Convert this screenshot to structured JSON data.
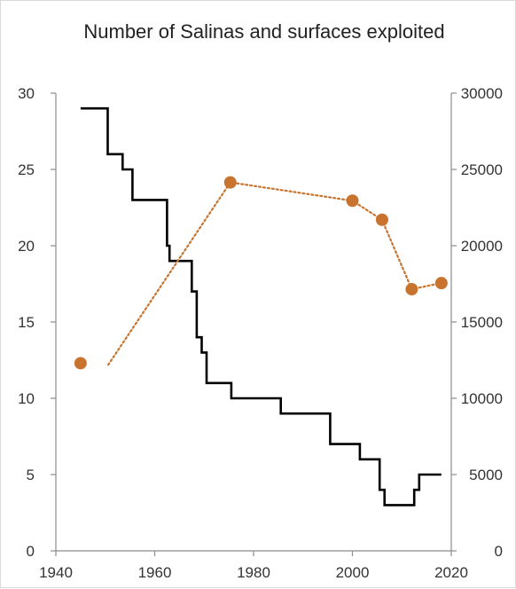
{
  "chart_data": {
    "type": "line",
    "title": "Number of Salinas and surfaces exploited",
    "xlabel": "",
    "ylabel": "",
    "xlim": [
      1940,
      2020
    ],
    "xticks": [
      1940,
      1960,
      1980,
      2000,
      2020
    ],
    "y_left": {
      "lim": [
        0,
        30
      ],
      "ticks": [
        0,
        5,
        10,
        15,
        20,
        25,
        30
      ]
    },
    "y_right": {
      "lim": [
        0,
        30000
      ],
      "ticks": [
        0,
        5000,
        10000,
        15000,
        20000,
        25000,
        30000
      ]
    },
    "grid": false,
    "legend": "none",
    "series": [
      {
        "axis": "left",
        "style": "step",
        "color": "#000000",
        "points": [
          [
            1945,
            29
          ],
          [
            1950.5,
            29
          ],
          [
            1950.5,
            26
          ],
          [
            1953.5,
            26
          ],
          [
            1953.5,
            25
          ],
          [
            1955.5,
            25
          ],
          [
            1955.5,
            23
          ],
          [
            1962.5,
            23
          ],
          [
            1962.5,
            20
          ],
          [
            1963,
            20
          ],
          [
            1963,
            19
          ],
          [
            1967.5,
            19
          ],
          [
            1967.5,
            17
          ],
          [
            1968.5,
            17
          ],
          [
            1968.5,
            14
          ],
          [
            1969.5,
            14
          ],
          [
            1969.5,
            13
          ],
          [
            1970.5,
            13
          ],
          [
            1970.5,
            11
          ],
          [
            1975.5,
            11
          ],
          [
            1975.5,
            10
          ],
          [
            1985.5,
            10
          ],
          [
            1985.5,
            9
          ],
          [
            1995.5,
            9
          ],
          [
            1995.5,
            7
          ],
          [
            2001.5,
            7
          ],
          [
            2001.5,
            6
          ],
          [
            2005.5,
            6
          ],
          [
            2005.5,
            4
          ],
          [
            2006.5,
            4
          ],
          [
            2006.5,
            3
          ],
          [
            2012.5,
            3
          ],
          [
            2012.5,
            4
          ],
          [
            2013.5,
            4
          ],
          [
            2013.5,
            5
          ],
          [
            2018,
            5
          ]
        ]
      },
      {
        "axis": "right",
        "style": "dotted-markers",
        "color": "#c8742e",
        "markers": [
          [
            1945,
            12300
          ],
          [
            1975.3,
            24150
          ],
          [
            2000,
            22950
          ],
          [
            2006,
            21700
          ],
          [
            2012,
            17150
          ],
          [
            2018,
            17550
          ]
        ],
        "line_points": [
          [
            1950.6,
            12200
          ],
          [
            1975.3,
            24150
          ],
          [
            2000,
            22950
          ],
          [
            2006,
            21700
          ],
          [
            2012,
            17150
          ],
          [
            2018,
            17550
          ]
        ]
      }
    ]
  }
}
